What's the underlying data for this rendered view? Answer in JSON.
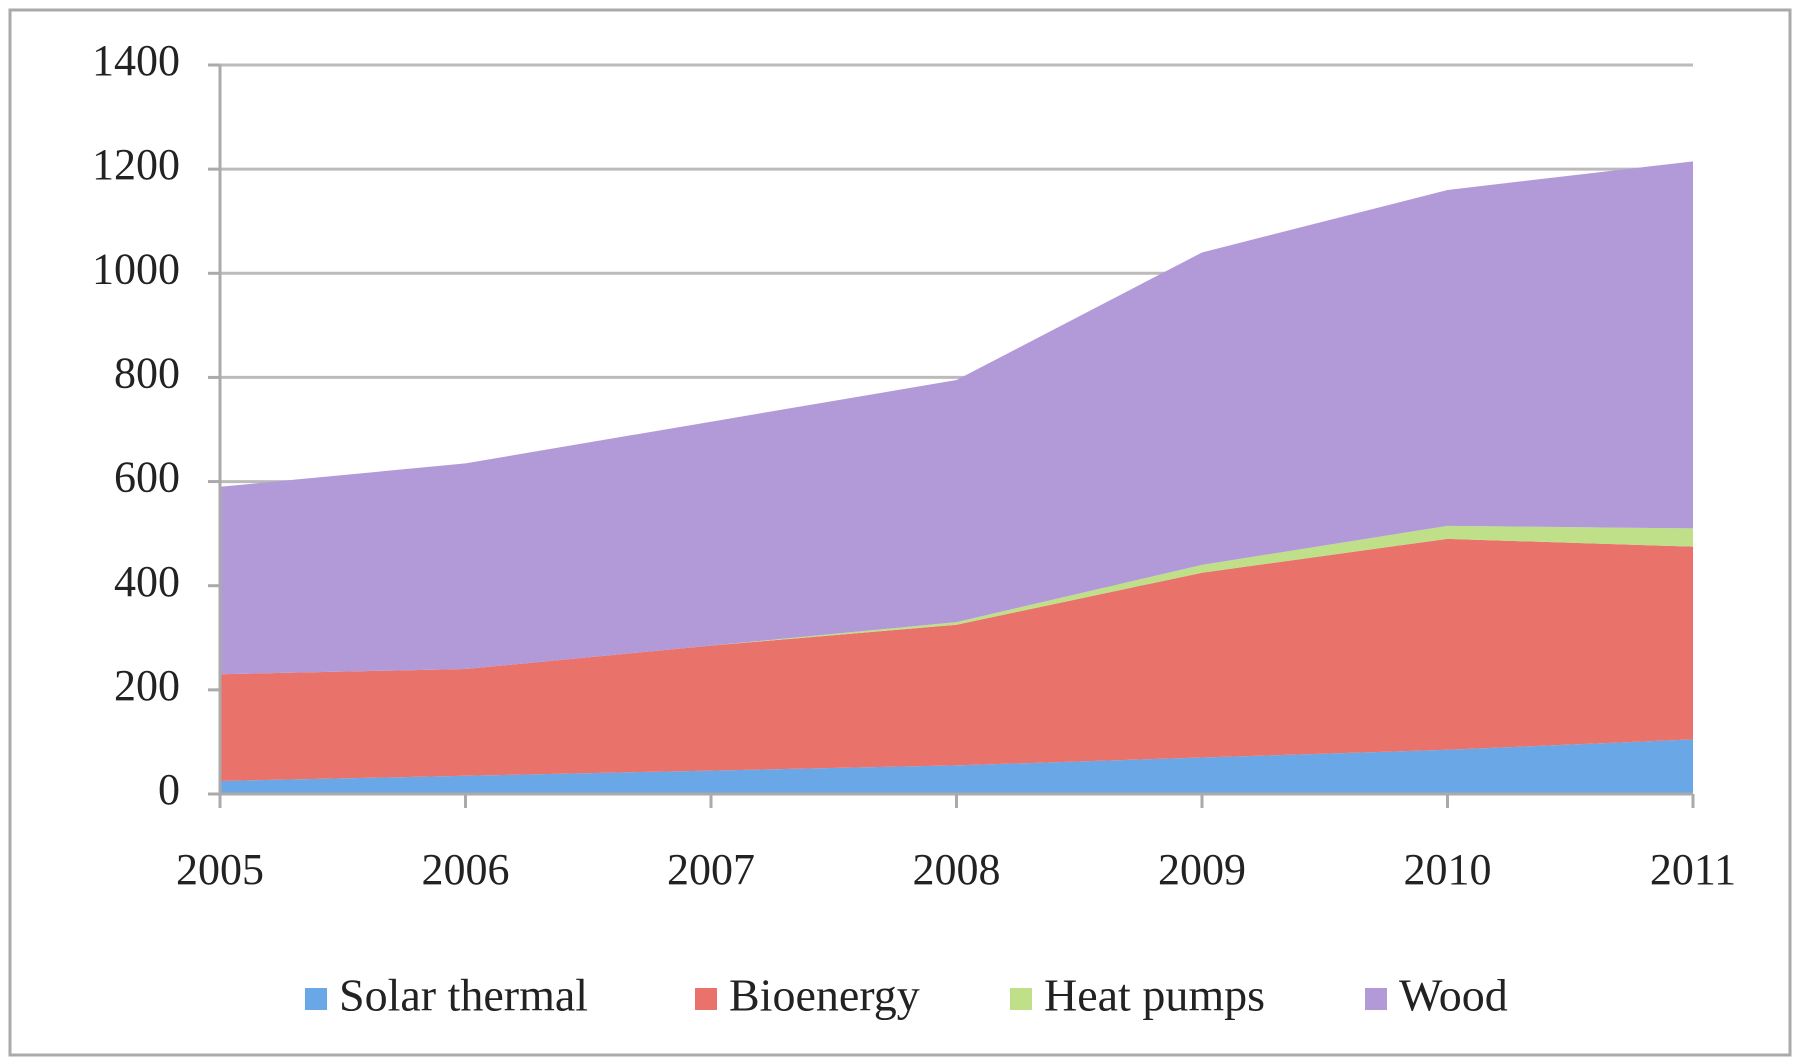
{
  "chart_data": {
    "type": "stacked-area",
    "categories": [
      "2005",
      "2006",
      "2007",
      "2008",
      "2009",
      "2010",
      "2011"
    ],
    "series": [
      {
        "name": "Solar thermal",
        "color": "#6aa7e6",
        "values": [
          25,
          35,
          45,
          55,
          70,
          85,
          105
        ]
      },
      {
        "name": "Bioenergy",
        "color": "#e9726b",
        "values": [
          205,
          205,
          240,
          270,
          355,
          405,
          370
        ]
      },
      {
        "name": "Heat pumps",
        "color": "#bfe089",
        "values": [
          0,
          0,
          0,
          5,
          15,
          25,
          35
        ]
      },
      {
        "name": "Wood",
        "color": "#b29ad9",
        "values": [
          360,
          395,
          430,
          465,
          600,
          645,
          705
        ]
      }
    ],
    "ylim": [
      0,
      1400
    ],
    "yticks": [
      0,
      200,
      400,
      600,
      800,
      1000,
      1200,
      1400
    ],
    "grid": true
  }
}
